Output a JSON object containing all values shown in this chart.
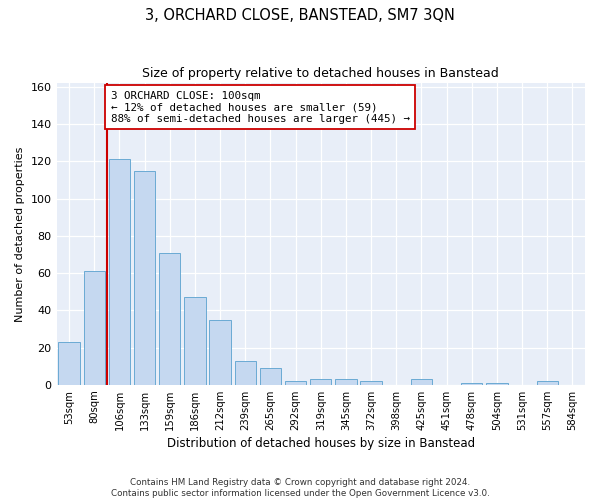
{
  "title": "3, ORCHARD CLOSE, BANSTEAD, SM7 3QN",
  "subtitle": "Size of property relative to detached houses in Banstead",
  "xlabel": "Distribution of detached houses by size in Banstead",
  "ylabel": "Number of detached properties",
  "bar_labels": [
    "53sqm",
    "80sqm",
    "106sqm",
    "133sqm",
    "159sqm",
    "186sqm",
    "212sqm",
    "239sqm",
    "265sqm",
    "292sqm",
    "319sqm",
    "345sqm",
    "372sqm",
    "398sqm",
    "425sqm",
    "451sqm",
    "478sqm",
    "504sqm",
    "531sqm",
    "557sqm",
    "584sqm"
  ],
  "bar_values": [
    23,
    61,
    121,
    115,
    71,
    47,
    35,
    13,
    9,
    2,
    3,
    3,
    2,
    0,
    3,
    0,
    1,
    1,
    0,
    2,
    0
  ],
  "bar_color": "#c5d8f0",
  "bar_edge_color": "#6aaad4",
  "plot_bg_color": "#e8eef8",
  "fig_bg_color": "#ffffff",
  "grid_color": "#ffffff",
  "vline_color": "#cc0000",
  "vline_x_idx": 2,
  "annotation_text": "3 ORCHARD CLOSE: 100sqm\n← 12% of detached houses are smaller (59)\n88% of semi-detached houses are larger (445) →",
  "annotation_box_color": "#ffffff",
  "annotation_box_edge": "#cc0000",
  "ylim": [
    0,
    162
  ],
  "yticks": [
    0,
    20,
    40,
    60,
    80,
    100,
    120,
    140,
    160
  ],
  "footer_line1": "Contains HM Land Registry data © Crown copyright and database right 2024.",
  "footer_line2": "Contains public sector information licensed under the Open Government Licence v3.0."
}
